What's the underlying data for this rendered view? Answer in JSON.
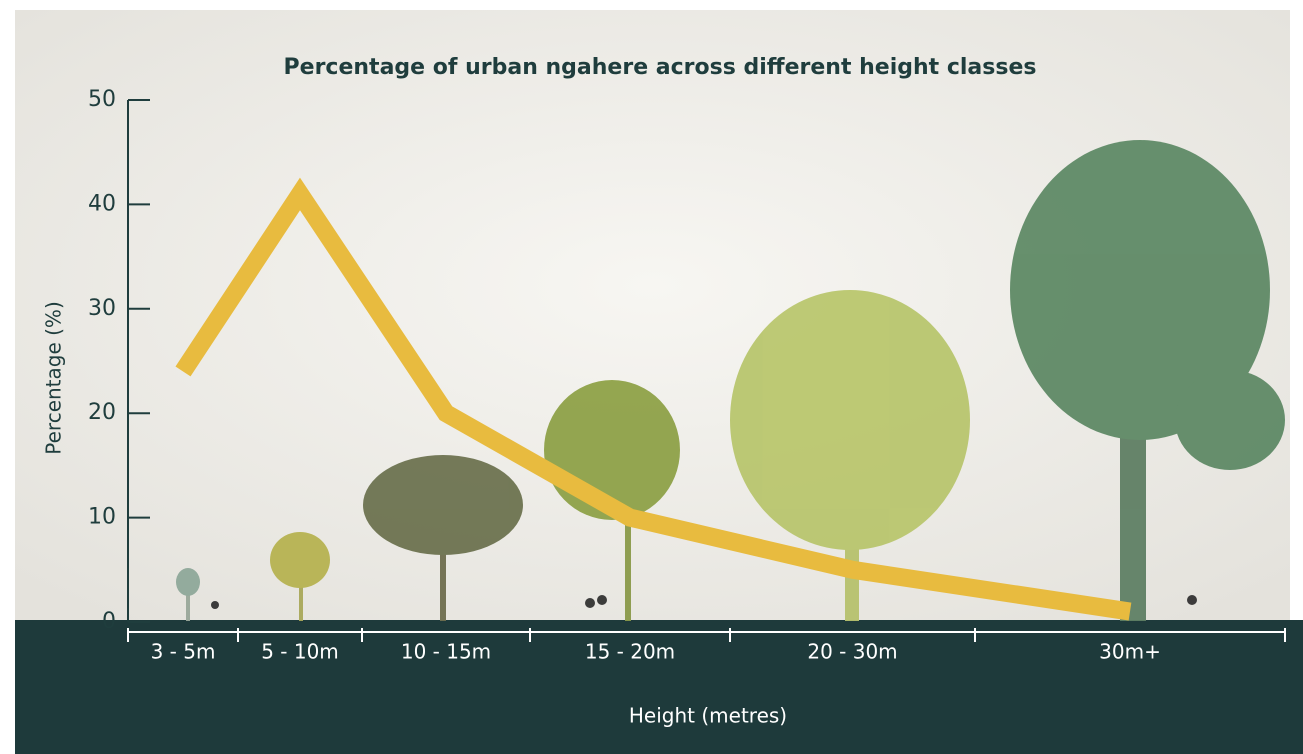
{
  "chart_data": {
    "type": "line",
    "title": "Percentage of urban ngahere across different height classes",
    "x_label": "Height (metres)",
    "y_label": "Percentage (%)",
    "categories": [
      "3 - 5m",
      "5 - 10m",
      "10 - 15m",
      "15 - 20m",
      "20 - 30m",
      "30m+"
    ],
    "values": [
      24,
      41,
      20,
      10,
      5,
      1
    ],
    "color": "#e8bb3f",
    "ylim": [
      0,
      50
    ],
    "yticks": [
      0,
      10,
      20,
      30,
      40,
      50
    ]
  }
}
